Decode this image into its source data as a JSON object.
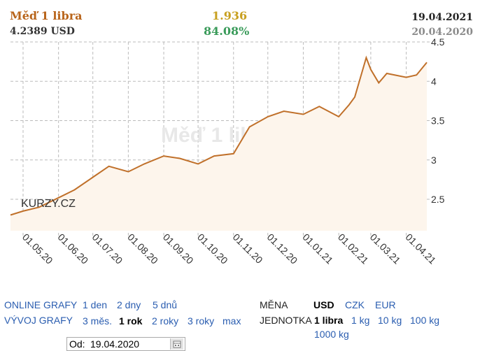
{
  "header": {
    "title": "Měď 1 libra",
    "usd_rate": "4.2389 USD",
    "change_abs": "1.936",
    "change_pct": "84.08%",
    "date_end": "19.04.2021",
    "date_start": "20.04.2020"
  },
  "colors": {
    "title": "#b8641a",
    "change_abs": "#c8a020",
    "change_pct": "#3a9b5a",
    "date_end": "#222222",
    "date_start": "#8a8a8a",
    "line": "#c0702a",
    "area": "#fdf5ec",
    "grid": "#bbbbbb",
    "link": "#2a5db0"
  },
  "chart_data": {
    "type": "area",
    "title": "Měď 1 libra",
    "watermark": "Měď 1 libra",
    "logo": "KURZY.CZ",
    "ylim": [
      2.1,
      4.5
    ],
    "yticks": [
      "2.5",
      "3",
      "3.5",
      "4",
      "4.5"
    ],
    "ytick_values": [
      2.5,
      3.0,
      3.5,
      4.0,
      4.5
    ],
    "xticks": [
      "01.05.20",
      "01.06.20",
      "01.07.20",
      "01.08.20",
      "01.09.20",
      "01.10.20",
      "01.11.20",
      "01.12.20",
      "01.01.21",
      "01.02.21",
      "01.03.21",
      "01.04.21"
    ],
    "x": [
      "2020-04-20",
      "2020-05-01",
      "2020-05-15",
      "2020-06-01",
      "2020-06-15",
      "2020-07-01",
      "2020-07-15",
      "2020-08-01",
      "2020-08-15",
      "2020-09-01",
      "2020-09-15",
      "2020-10-01",
      "2020-10-15",
      "2020-11-01",
      "2020-11-15",
      "2020-12-01",
      "2020-12-15",
      "2021-01-01",
      "2021-01-15",
      "2021-02-01",
      "2021-02-10",
      "2021-02-15",
      "2021-02-20",
      "2021-02-25",
      "2021-03-01",
      "2021-03-08",
      "2021-03-15",
      "2021-04-01",
      "2021-04-10",
      "2021-04-19"
    ],
    "y": [
      2.3,
      2.35,
      2.4,
      2.52,
      2.62,
      2.78,
      2.92,
      2.85,
      2.95,
      3.05,
      3.02,
      2.95,
      3.05,
      3.08,
      3.42,
      3.55,
      3.62,
      3.58,
      3.68,
      3.55,
      3.7,
      3.8,
      4.05,
      4.3,
      4.15,
      3.98,
      4.1,
      4.05,
      4.08,
      4.24
    ],
    "grid": true
  },
  "controls": {
    "online_label": "ONLINE GRAFY",
    "online_items": [
      "1 den",
      "2 dny",
      "5 dnů"
    ],
    "vyvoj_label": "VÝVOJ GRAFY",
    "vyvoj_items": [
      "3 měs.",
      "1 rok",
      "2 roky",
      "3 roky",
      "max"
    ],
    "mena_label": "MĚNA",
    "mena_items": [
      "USD",
      "CZK",
      "EUR"
    ],
    "jednotka_label": "JEDNOTKA",
    "jednotka_items": [
      "1 libra",
      "1 kg",
      "10 kg",
      "100 kg",
      "1000 kg"
    ],
    "od_label": "Od:",
    "od_value": "19.04.2020"
  }
}
